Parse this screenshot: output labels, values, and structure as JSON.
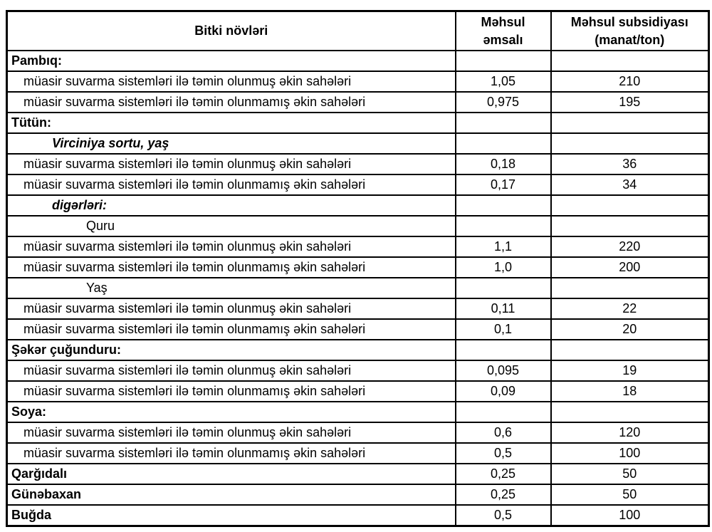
{
  "table": {
    "headers": {
      "crop": "Bitki növləri",
      "coefficient_line1": "Məhsul",
      "coefficient_line2": "əmsalı",
      "subsidy_line1": "Məhsul subsidiyası",
      "subsidy_line2": "(manat/ton)"
    },
    "rows": [
      {
        "label": "Pambıq:",
        "style": "category",
        "emsal": "",
        "subsidiya": ""
      },
      {
        "label": "müasir suvarma sistemləri ilə təmin olunmuş əkin sahələri",
        "style": "sub",
        "emsal": "1,05",
        "subsidiya": "210"
      },
      {
        "label": "müasir suvarma sistemləri ilə təmin olunmamış əkin sahələri",
        "style": "sub",
        "emsal": "0,975",
        "subsidiya": "195"
      },
      {
        "label": "Tütün:",
        "style": "category",
        "emsal": "",
        "subsidiya": ""
      },
      {
        "label": "Virciniya sortu, yaş",
        "style": "variety",
        "emsal": "",
        "subsidiya": ""
      },
      {
        "label": "müasir suvarma sistemləri ilə təmin olunmuş əkin sahələri",
        "style": "sub",
        "emsal": "0,18",
        "subsidiya": "36"
      },
      {
        "label": "müasir suvarma sistemləri ilə təmin olunmamış əkin sahələri",
        "style": "sub",
        "emsal": "0,17",
        "subsidiya": "34"
      },
      {
        "label": "digərləri:",
        "style": "variety",
        "emsal": "",
        "subsidiya": ""
      },
      {
        "label": "Quru",
        "style": "subvariety",
        "emsal": "",
        "subsidiya": ""
      },
      {
        "label": "müasir suvarma sistemləri ilə təmin olunmuş əkin sahələri",
        "style": "sub",
        "emsal": "1,1",
        "subsidiya": "220"
      },
      {
        "label": "müasir suvarma sistemləri ilə təmin olunmamış əkin sahələri",
        "style": "sub",
        "emsal": "1,0",
        "subsidiya": "200"
      },
      {
        "label": "Yaş",
        "style": "subvariety",
        "emsal": "",
        "subsidiya": ""
      },
      {
        "label": "müasir suvarma sistemləri ilə təmin olunmuş əkin sahələri",
        "style": "sub",
        "emsal": "0,11",
        "subsidiya": "22"
      },
      {
        "label": "müasir suvarma sistemləri ilə təmin olunmamış əkin sahələri",
        "style": "sub",
        "emsal": "0,1",
        "subsidiya": "20"
      },
      {
        "label": "Şəkər çuğunduru:",
        "style": "category",
        "emsal": "",
        "subsidiya": ""
      },
      {
        "label": "müasir suvarma sistemləri ilə təmin olunmuş əkin sahələri",
        "style": "sub",
        "emsal": "0,095",
        "subsidiya": "19"
      },
      {
        "label": "müasir suvarma sistemləri ilə təmin olunmamış əkin sahələri",
        "style": "sub",
        "emsal": "0,09",
        "subsidiya": "18"
      },
      {
        "label": "Soya:",
        "style": "category",
        "emsal": "",
        "subsidiya": ""
      },
      {
        "label": "müasir suvarma sistemləri ilə təmin olunmuş əkin sahələri",
        "style": "sub",
        "emsal": "0,6",
        "subsidiya": "120"
      },
      {
        "label": "müasir suvarma sistemləri ilə təmin olunmamış əkin sahələri",
        "style": "sub",
        "emsal": "0,5",
        "subsidiya": "100"
      },
      {
        "label": "Qarğıdalı",
        "style": "category",
        "emsal": "0,25",
        "subsidiya": "50"
      },
      {
        "label": "Günəbaxan",
        "style": "category",
        "emsal": "0,25",
        "subsidiya": "50"
      },
      {
        "label": "Buğda",
        "style": "category",
        "emsal": "0,5",
        "subsidiya": "100"
      }
    ]
  }
}
